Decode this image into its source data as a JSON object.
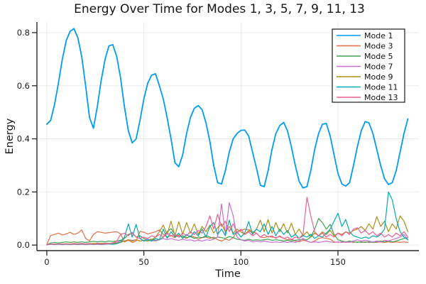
{
  "chart_data": {
    "type": "line",
    "title": "Energy Over Time for Modes 1, 3, 5, 7, 9, 11, 13",
    "xlabel": "Time",
    "ylabel": "Energy",
    "xlim": [
      -5.1,
      191.7
    ],
    "ylim": [
      -0.021,
      0.84
    ],
    "x_ticks": [
      0,
      50,
      100,
      150
    ],
    "x_tick_labels": [
      "0",
      "50",
      "100",
      "150"
    ],
    "y_ticks": [
      0,
      0.2,
      0.4,
      0.6,
      0.8
    ],
    "y_tick_labels": [
      "0.0",
      "0.2",
      "0.4",
      "0.6",
      "0.8"
    ],
    "grid": true,
    "legend_position": "top-right",
    "x_start": 0,
    "x_step": 2,
    "series": [
      {
        "name": "Mode 1",
        "color": "#009AF9",
        "line_width": 1.8,
        "values": [
          0.455,
          0.47,
          0.53,
          0.61,
          0.7,
          0.77,
          0.805,
          0.815,
          0.78,
          0.71,
          0.6,
          0.48,
          0.44,
          0.52,
          0.62,
          0.7,
          0.75,
          0.755,
          0.71,
          0.63,
          0.52,
          0.43,
          0.385,
          0.4,
          0.47,
          0.55,
          0.61,
          0.64,
          0.645,
          0.6,
          0.55,
          0.48,
          0.4,
          0.31,
          0.295,
          0.34,
          0.42,
          0.48,
          0.515,
          0.525,
          0.51,
          0.46,
          0.39,
          0.3,
          0.235,
          0.23,
          0.28,
          0.35,
          0.4,
          0.42,
          0.432,
          0.433,
          0.41,
          0.35,
          0.29,
          0.225,
          0.22,
          0.28,
          0.36,
          0.42,
          0.45,
          0.462,
          0.43,
          0.37,
          0.3,
          0.24,
          0.215,
          0.22,
          0.28,
          0.36,
          0.42,
          0.455,
          0.458,
          0.41,
          0.34,
          0.27,
          0.23,
          0.222,
          0.235,
          0.3,
          0.37,
          0.43,
          0.465,
          0.46,
          0.42,
          0.36,
          0.3,
          0.25,
          0.228,
          0.235,
          0.28,
          0.35,
          0.42,
          0.475
        ]
      },
      {
        "name": "Mode 3",
        "color": "#E36F47",
        "line_width": 1.2,
        "values": [
          0.002,
          0.036,
          0.04,
          0.045,
          0.038,
          0.042,
          0.048,
          0.04,
          0.045,
          0.057,
          0.025,
          0.016,
          0.04,
          0.05,
          0.048,
          0.045,
          0.047,
          0.049,
          0.05,
          0.042,
          0.012,
          0.018,
          0.01,
          0.015,
          0.052,
          0.048,
          0.042,
          0.046,
          0.05,
          0.057,
          0.04,
          0.03,
          0.035,
          0.028,
          0.038,
          0.03,
          0.025,
          0.035,
          0.03,
          0.022,
          0.028,
          0.03,
          0.025,
          0.03,
          0.02,
          0.015,
          0.022,
          0.018,
          0.028,
          0.05,
          0.055,
          0.06,
          0.058,
          0.05,
          0.045,
          0.03,
          0.028,
          0.032,
          0.03,
          0.028,
          0.032,
          0.025,
          0.02,
          0.022,
          0.015,
          0.012,
          0.018,
          0.015,
          0.01,
          0.015,
          0.025,
          0.028,
          0.025,
          0.022,
          0.012,
          0.01,
          0.012,
          0.01,
          0.012,
          0.01,
          0.012,
          0.01,
          0.012,
          0.01,
          0.012,
          0.01,
          0.012,
          0.01,
          0.012,
          0.01,
          0.012,
          0.01,
          0.012,
          0.01
        ]
      },
      {
        "name": "Mode 5",
        "color": "#3EA44E",
        "line_width": 1.2,
        "values": [
          0.001,
          0.008,
          0.01,
          0.008,
          0.01,
          0.012,
          0.01,
          0.012,
          0.01,
          0.012,
          0.01,
          0.012,
          0.014,
          0.012,
          0.014,
          0.012,
          0.015,
          0.013,
          0.015,
          0.018,
          0.025,
          0.04,
          0.045,
          0.03,
          0.035,
          0.025,
          0.02,
          0.022,
          0.018,
          0.02,
          0.03,
          0.05,
          0.062,
          0.04,
          0.03,
          0.035,
          0.028,
          0.032,
          0.025,
          0.03,
          0.028,
          0.035,
          0.03,
          0.025,
          0.03,
          0.028,
          0.025,
          0.032,
          0.028,
          0.022,
          0.02,
          0.018,
          0.022,
          0.018,
          0.02,
          0.018,
          0.02,
          0.022,
          0.018,
          0.02,
          0.018,
          0.015,
          0.018,
          0.015,
          0.018,
          0.02,
          0.022,
          0.02,
          0.03,
          0.06,
          0.1,
          0.085,
          0.06,
          0.078,
          0.04,
          0.02,
          0.015,
          0.012,
          0.015,
          0.012,
          0.01,
          0.012,
          0.01,
          0.012,
          0.01,
          0.012,
          0.015,
          0.012,
          0.015,
          0.012,
          0.015,
          0.02,
          0.025,
          0.028
        ]
      },
      {
        "name": "Mode 7",
        "color": "#C371D2",
        "line_width": 1.2,
        "values": [
          0.001,
          0.004,
          0.003,
          0.005,
          0.004,
          0.005,
          0.004,
          0.006,
          0.005,
          0.006,
          0.005,
          0.006,
          0.005,
          0.007,
          0.006,
          0.007,
          0.006,
          0.008,
          0.01,
          0.015,
          0.015,
          0.02,
          0.018,
          0.02,
          0.015,
          0.018,
          0.022,
          0.018,
          0.015,
          0.02,
          0.025,
          0.02,
          0.025,
          0.02,
          0.018,
          0.022,
          0.018,
          0.02,
          0.015,
          0.018,
          0.015,
          0.02,
          0.018,
          0.022,
          0.03,
          0.155,
          0.04,
          0.16,
          0.11,
          0.03,
          0.02,
          0.015,
          0.018,
          0.012,
          0.015,
          0.012,
          0.015,
          0.012,
          0.01,
          0.012,
          0.01,
          0.012,
          0.01,
          0.012,
          0.01,
          0.015,
          0.025,
          0.015,
          0.01,
          0.012,
          0.01,
          0.012,
          0.015,
          0.012,
          0.01,
          0.012,
          0.01,
          0.012,
          0.01,
          0.015,
          0.02,
          0.015,
          0.018,
          0.015,
          0.012,
          0.015,
          0.012,
          0.018,
          0.015,
          0.02,
          0.025,
          0.03,
          0.04,
          0.02
        ]
      },
      {
        "name": "Mode 9",
        "color": "#AC8E18",
        "line_width": 1.2,
        "values": [
          0.001,
          0.003,
          0.004,
          0.003,
          0.004,
          0.005,
          0.004,
          0.005,
          0.004,
          0.005,
          0.004,
          0.005,
          0.006,
          0.005,
          0.006,
          0.005,
          0.006,
          0.005,
          0.008,
          0.01,
          0.015,
          0.02,
          0.015,
          0.02,
          0.015,
          0.018,
          0.015,
          0.02,
          0.03,
          0.05,
          0.075,
          0.04,
          0.09,
          0.035,
          0.088,
          0.04,
          0.085,
          0.045,
          0.08,
          0.04,
          0.07,
          0.05,
          0.075,
          0.045,
          0.065,
          0.08,
          0.05,
          0.07,
          0.045,
          0.06,
          0.05,
          0.04,
          0.055,
          0.045,
          0.06,
          0.094,
          0.05,
          0.096,
          0.045,
          0.085,
          0.05,
          0.08,
          0.045,
          0.082,
          0.04,
          0.06,
          0.035,
          0.05,
          0.03,
          0.045,
          0.035,
          0.05,
          0.04,
          0.055,
          0.035,
          0.045,
          0.04,
          0.05,
          0.045,
          0.055,
          0.06,
          0.07,
          0.055,
          0.08,
          0.06,
          0.107,
          0.07,
          0.09,
          0.05,
          0.08,
          0.06,
          0.11,
          0.09,
          0.05
        ]
      },
      {
        "name": "Mode 11",
        "color": "#00AAAE",
        "line_width": 1.2,
        "values": [
          0.001,
          0.003,
          0.002,
          0.003,
          0.002,
          0.003,
          0.002,
          0.003,
          0.002,
          0.003,
          0.002,
          0.003,
          0.002,
          0.003,
          0.002,
          0.003,
          0.004,
          0.003,
          0.005,
          0.01,
          0.03,
          0.08,
          0.03,
          0.078,
          0.025,
          0.015,
          0.02,
          0.015,
          0.025,
          0.02,
          0.06,
          0.025,
          0.05,
          0.03,
          0.045,
          0.025,
          0.04,
          0.03,
          0.05,
          0.035,
          0.06,
          0.03,
          0.07,
          0.085,
          0.04,
          0.06,
          0.035,
          0.094,
          0.04,
          0.05,
          0.03,
          0.045,
          0.089,
          0.04,
          0.06,
          0.05,
          0.08,
          0.04,
          0.07,
          0.035,
          0.06,
          0.04,
          0.055,
          0.03,
          0.04,
          0.025,
          0.035,
          0.03,
          0.04,
          0.025,
          0.035,
          0.03,
          0.045,
          0.06,
          0.09,
          0.12,
          0.07,
          0.096,
          0.05,
          0.035,
          0.03,
          0.025,
          0.03,
          0.025,
          0.035,
          0.03,
          0.04,
          0.06,
          0.2,
          0.17,
          0.1,
          0.05,
          0.03,
          0.02
        ]
      },
      {
        "name": "Mode 13",
        "color": "#ED5E93",
        "line_width": 1.2,
        "values": [
          0.001,
          0.004,
          0.003,
          0.004,
          0.003,
          0.004,
          0.003,
          0.004,
          0.003,
          0.004,
          0.003,
          0.004,
          0.003,
          0.004,
          0.003,
          0.004,
          0.005,
          0.008,
          0.015,
          0.04,
          0.045,
          0.035,
          0.048,
          0.03,
          0.025,
          0.03,
          0.025,
          0.035,
          0.03,
          0.04,
          0.03,
          0.045,
          0.035,
          0.04,
          0.03,
          0.045,
          0.035,
          0.05,
          0.04,
          0.055,
          0.045,
          0.07,
          0.11,
          0.06,
          0.116,
          0.07,
          0.09,
          0.05,
          0.08,
          0.045,
          0.06,
          0.04,
          0.05,
          0.035,
          0.045,
          0.03,
          0.04,
          0.03,
          0.035,
          0.025,
          0.035,
          0.025,
          0.03,
          0.02,
          0.03,
          0.025,
          0.04,
          0.18,
          0.11,
          0.05,
          0.035,
          0.045,
          0.03,
          0.04,
          0.03,
          0.045,
          0.035,
          0.05,
          0.04,
          0.06,
          0.065,
          0.045,
          0.055,
          0.04,
          0.05,
          0.035,
          0.045,
          0.03,
          0.04,
          0.03,
          0.045,
          0.035,
          0.05,
          0.03
        ]
      }
    ]
  },
  "colors": {
    "background": "#ffffff",
    "axis": "#262626",
    "grid": "rgba(0,0,0,0.08)",
    "tick_label": "#1c1c1c",
    "legend_border": "#1a1a1a",
    "legend_fill": "#ffffff"
  }
}
